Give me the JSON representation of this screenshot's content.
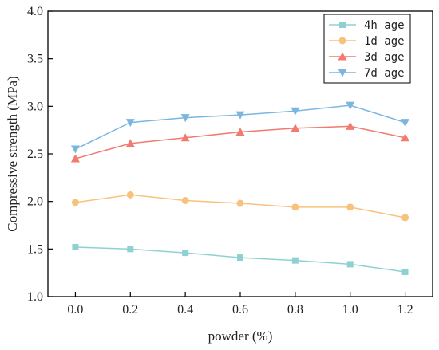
{
  "chart_data": {
    "type": "line",
    "title": "",
    "xlabel": "powder (%)",
    "ylabel": "Compressive strength (MPa)",
    "x": [
      0.0,
      0.2,
      0.4,
      0.6,
      0.8,
      1.0,
      1.2
    ],
    "xticks": [
      "0.0",
      "0.2",
      "0.4",
      "0.6",
      "0.8",
      "1.0",
      "1.2"
    ],
    "xlim": [
      -0.1,
      1.3
    ],
    "ylim": [
      1.0,
      4.0
    ],
    "yticks": [
      "1.0",
      "1.5",
      "2.0",
      "2.5",
      "3.0",
      "3.5",
      "4.0"
    ],
    "grid": false,
    "legend_position": "top-right",
    "series": [
      {
        "name": "4h age",
        "color": "#8fd1d3",
        "marker": "square",
        "values": [
          1.52,
          1.5,
          1.46,
          1.41,
          1.38,
          1.34,
          1.26
        ]
      },
      {
        "name": "1d age",
        "color": "#f8c27e",
        "marker": "circle",
        "values": [
          1.99,
          2.07,
          2.01,
          1.98,
          1.94,
          1.94,
          1.83
        ]
      },
      {
        "name": "3d age",
        "color": "#f27a6f",
        "marker": "triangle-up",
        "values": [
          2.45,
          2.61,
          2.67,
          2.73,
          2.77,
          2.79,
          2.67
        ]
      },
      {
        "name": "7d age",
        "color": "#7bb6e0",
        "marker": "triangle-down",
        "values": [
          2.55,
          2.83,
          2.88,
          2.91,
          2.95,
          3.01,
          2.83
        ]
      }
    ]
  }
}
